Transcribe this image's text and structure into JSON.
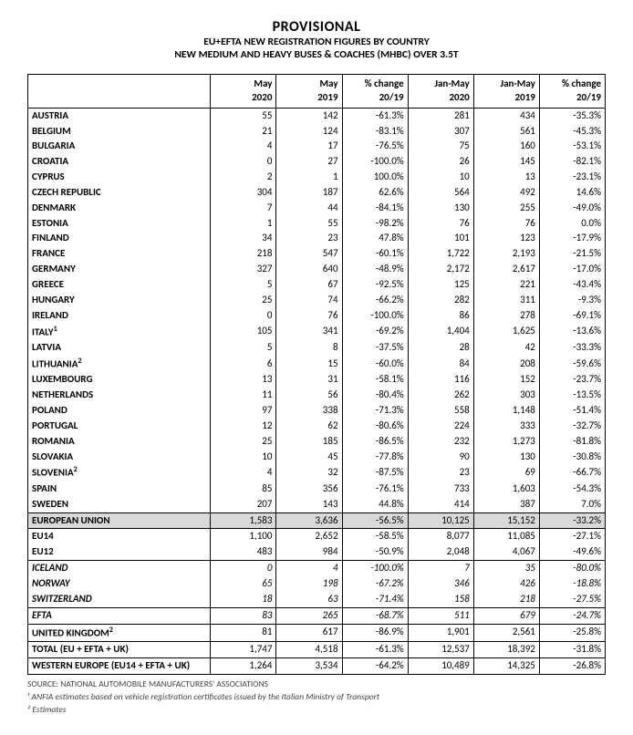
{
  "title": {
    "main": "PROVISIONAL",
    "line2": "EU+EFTA NEW REGISTRATION FIGURES BY COUNTRY",
    "line3": "NEW MEDIUM AND HEAVY BUSES & COACHES (MHBC) OVER 3.5T"
  },
  "columns": [
    {
      "l1": "May",
      "l2": "2020"
    },
    {
      "l1": "May",
      "l2": "2019"
    },
    {
      "l1": "% change",
      "l2": "20/19"
    },
    {
      "l1": "Jan-May",
      "l2": "2020"
    },
    {
      "l1": "Jan-May",
      "l2": "2019"
    },
    {
      "l1": "% change",
      "l2": "20/19"
    }
  ],
  "rows": [
    {
      "label": "AUSTRIA",
      "v": [
        "55",
        "142",
        "-61.3%",
        "281",
        "434",
        "-35.3%"
      ]
    },
    {
      "label": "BELGIUM",
      "v": [
        "21",
        "124",
        "-83.1%",
        "307",
        "561",
        "-45.3%"
      ]
    },
    {
      "label": "BULGARIA",
      "v": [
        "4",
        "17",
        "-76.5%",
        "75",
        "160",
        "-53.1%"
      ]
    },
    {
      "label": "CROATIA",
      "v": [
        "0",
        "27",
        "-100.0%",
        "26",
        "145",
        "-82.1%"
      ]
    },
    {
      "label": "CYPRUS",
      "v": [
        "2",
        "1",
        "100.0%",
        "10",
        "13",
        "-23.1%"
      ]
    },
    {
      "label": "CZECH REPUBLIC",
      "v": [
        "304",
        "187",
        "62.6%",
        "564",
        "492",
        "14.6%"
      ]
    },
    {
      "label": "DENMARK",
      "v": [
        "7",
        "44",
        "-84.1%",
        "130",
        "255",
        "-49.0%"
      ]
    },
    {
      "label": "ESTONIA",
      "v": [
        "1",
        "55",
        "-98.2%",
        "76",
        "76",
        "0.0%"
      ]
    },
    {
      "label": "FINLAND",
      "v": [
        "34",
        "23",
        "47.8%",
        "101",
        "123",
        "-17.9%"
      ]
    },
    {
      "label": "FRANCE",
      "v": [
        "218",
        "547",
        "-60.1%",
        "1,722",
        "2,193",
        "-21.5%"
      ]
    },
    {
      "label": "GERMANY",
      "v": [
        "327",
        "640",
        "-48.9%",
        "2,172",
        "2,617",
        "-17.0%"
      ]
    },
    {
      "label": "GREECE",
      "v": [
        "5",
        "67",
        "-92.5%",
        "125",
        "221",
        "-43.4%"
      ]
    },
    {
      "label": "HUNGARY",
      "v": [
        "25",
        "74",
        "-66.2%",
        "282",
        "311",
        "-9.3%"
      ]
    },
    {
      "label": "IRELAND",
      "v": [
        "0",
        "76",
        "-100.0%",
        "86",
        "278",
        "-69.1%"
      ]
    },
    {
      "label": "ITALY",
      "sup": "1",
      "v": [
        "105",
        "341",
        "-69.2%",
        "1,404",
        "1,625",
        "-13.6%"
      ]
    },
    {
      "label": "LATVIA",
      "v": [
        "5",
        "8",
        "-37.5%",
        "28",
        "42",
        "-33.3%"
      ]
    },
    {
      "label": "LITHUANIA",
      "sup": "2",
      "v": [
        "6",
        "15",
        "-60.0%",
        "84",
        "208",
        "-59.6%"
      ]
    },
    {
      "label": "LUXEMBOURG",
      "v": [
        "13",
        "31",
        "-58.1%",
        "116",
        "152",
        "-23.7%"
      ]
    },
    {
      "label": "NETHERLANDS",
      "v": [
        "11",
        "56",
        "-80.4%",
        "262",
        "303",
        "-13.5%"
      ]
    },
    {
      "label": "POLAND",
      "v": [
        "97",
        "338",
        "-71.3%",
        "558",
        "1,148",
        "-51.4%"
      ]
    },
    {
      "label": "PORTUGAL",
      "v": [
        "12",
        "62",
        "-80.6%",
        "224",
        "333",
        "-32.7%"
      ]
    },
    {
      "label": "ROMANIA",
      "v": [
        "25",
        "185",
        "-86.5%",
        "232",
        "1,273",
        "-81.8%"
      ]
    },
    {
      "label": "SLOVAKIA",
      "v": [
        "10",
        "45",
        "-77.8%",
        "90",
        "130",
        "-30.8%"
      ]
    },
    {
      "label": "SLOVENIA",
      "sup": "2",
      "v": [
        "4",
        "32",
        "-87.5%",
        "23",
        "69",
        "-66.7%"
      ]
    },
    {
      "label": "SPAIN",
      "v": [
        "85",
        "356",
        "-76.1%",
        "733",
        "1,603",
        "-54.3%"
      ]
    },
    {
      "label": "SWEDEN",
      "v": [
        "207",
        "143",
        "44.8%",
        "414",
        "387",
        "7.0%"
      ]
    },
    {
      "label": "EUROPEAN UNION",
      "v": [
        "1,583",
        "3,636",
        "-56.5%",
        "10,125",
        "15,152",
        "-33.2%"
      ],
      "highlight": true
    },
    {
      "label": "EU14",
      "v": [
        "1,100",
        "2,652",
        "-58.5%",
        "8,077",
        "11,085",
        "-27.1%"
      ]
    },
    {
      "label": "EU12",
      "v": [
        "483",
        "984",
        "-50.9%",
        "2,048",
        "4,067",
        "-49.6%"
      ]
    },
    {
      "label": "ICELAND",
      "v": [
        "0",
        "4",
        "-100.0%",
        "7",
        "35",
        "-80.0%"
      ],
      "italic": true,
      "sectionTop": true
    },
    {
      "label": "NORWAY",
      "v": [
        "65",
        "198",
        "-67.2%",
        "346",
        "426",
        "-18.8%"
      ],
      "italic": true
    },
    {
      "label": "SWITZERLAND",
      "v": [
        "18",
        "63",
        "-71.4%",
        "158",
        "218",
        "-27.5%"
      ],
      "italic": true
    },
    {
      "label": "EFTA",
      "v": [
        "83",
        "265",
        "-68.7%",
        "511",
        "679",
        "-24.7%"
      ],
      "italic": true,
      "sectionTop": true
    },
    {
      "label": "UNITED KINGDOM",
      "sup": "2",
      "v": [
        "81",
        "617",
        "-86.9%",
        "1,901",
        "2,561",
        "-25.8%"
      ],
      "sectionTop": true
    },
    {
      "label": "TOTAL (EU + EFTA + UK)",
      "v": [
        "1,747",
        "4,518",
        "-61.3%",
        "12,537",
        "18,392",
        "-31.8%"
      ],
      "sectionTop": true
    },
    {
      "label": "WESTERN EUROPE (EU14 + EFTA + UK)",
      "v": [
        "1,264",
        "3,534",
        "-64.2%",
        "10,489",
        "14,325",
        "-26.8%"
      ],
      "sectionTop": true,
      "tableEnd": true
    }
  ],
  "footnotes": {
    "source": "SOURCE: NATIONAL AUTOMOBILE MANUFACTURERS' ASSOCIATIONS",
    "n1": "¹ ANFIA estimates based on vehicle registration certificates issued by the Italian Ministry of Transport",
    "n2": "² Estimates"
  }
}
